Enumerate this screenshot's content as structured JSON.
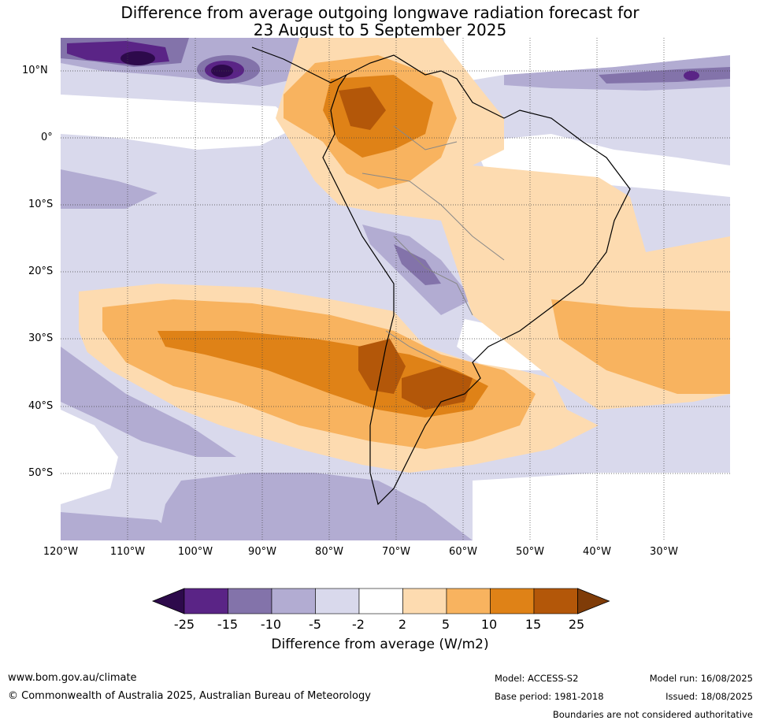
{
  "title": {
    "line1": "Difference from average outgoing longwave radiation forecast for",
    "line2": "23 August to 5 September 2025"
  },
  "map": {
    "lat_labels": [
      "10°N",
      "0°",
      "10°S",
      "20°S",
      "30°S",
      "40°S",
      "50°S"
    ],
    "lon_labels": [
      "120°W",
      "110°W",
      "100°W",
      "90°W",
      "80°W",
      "70°W",
      "60°W",
      "50°W",
      "40°W",
      "30°W"
    ]
  },
  "legend": {
    "ticks": [
      "-25",
      "-15",
      "-10",
      "-5",
      "-2",
      "2",
      "5",
      "10",
      "15",
      "25"
    ],
    "colors": [
      "#2d0a4b",
      "#5a2486",
      "#8373aa",
      "#b2acd2",
      "#d9d9ec",
      "#ffffff",
      "#fddbb0",
      "#f8b35f",
      "#df8217",
      "#b35709",
      "#7f3c08"
    ],
    "label": "Difference from average (W/m2)"
  },
  "footer": {
    "website": "www.bom.gov.au/climate",
    "copyright": "© Commonwealth of Australia 2025, Australian Bureau of Meteorology",
    "model": "Model: ACCESS-S2",
    "base_period": "Base period: 1981-2018",
    "model_run": "Model run: 16/08/2025",
    "issued": "Issued: 18/08/2025",
    "disclaimer": "Boundaries are not considered authoritative"
  }
}
